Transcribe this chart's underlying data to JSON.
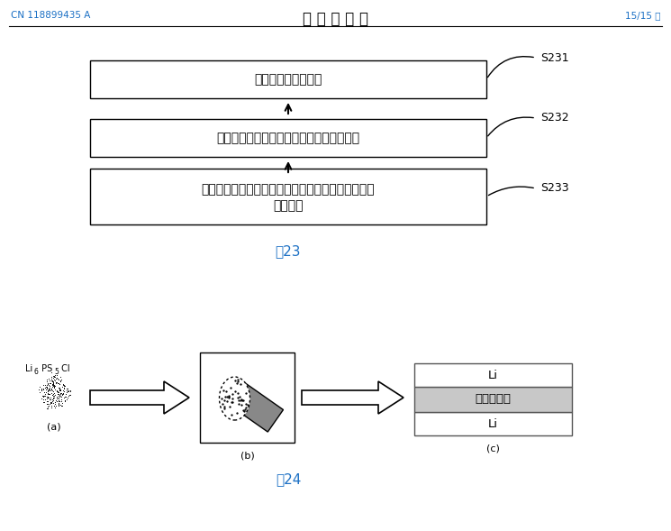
{
  "header_left": "CN 118899435 A",
  "header_center": "说 明 书 附 图",
  "header_right": "15/15 页",
  "header_color": "#1a6fc4",
  "fig23_label": "图23",
  "fig24_label": "图24",
  "box1_text": "形成掺杂硫化物材料",
  "box2_text": "利用掺杂硫化物材料形成硫化物固态电解质",
  "box3_line1": "组装金属锤负极、硫化物固态电解质和正极，得到锤",
  "box3_line2": "离子电池",
  "s231": "S231",
  "s232": "S232",
  "s233": "S233",
  "label_a": "(a)",
  "label_b": "(b)",
  "label_c": "(c)",
  "li_top": "Li",
  "solid_electrolyte": "固态电解质",
  "li_bottom": "Li",
  "li6_label_main": "Li",
  "li6_sub1": "6",
  "li6_mid": " PS",
  "li6_sub2": "5",
  "li6_end": " Cl"
}
